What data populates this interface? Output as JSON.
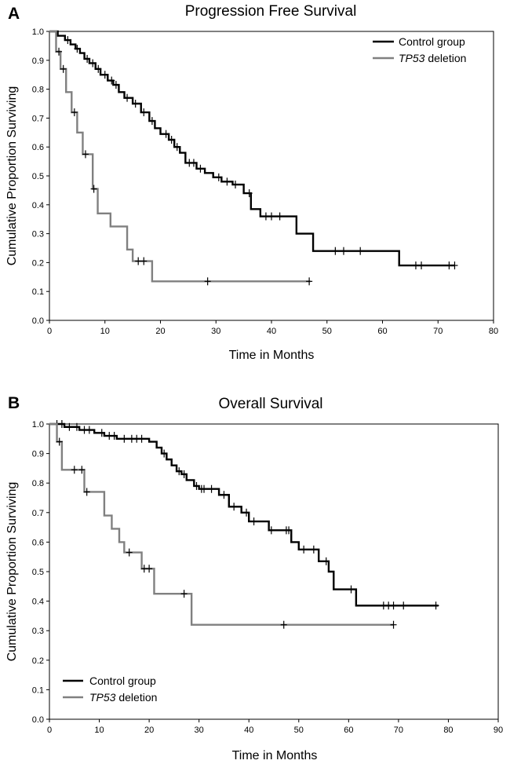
{
  "chart_data": [
    {
      "type": "line",
      "panel_letter": "A",
      "title": "Progression Free Survival",
      "xlabel": "Time in Months",
      "ylabel": "Cumulative Proportion Surviving",
      "xlim": [
        0,
        80
      ],
      "ylim": [
        0,
        1.0
      ],
      "xticks": [
        0,
        10,
        20,
        30,
        40,
        50,
        60,
        70,
        80
      ],
      "yticks": [
        "0.0",
        "0.1",
        "0.2",
        "0.3",
        "0.4",
        "0.5",
        "0.6",
        "0.7",
        "0.8",
        "0.9",
        "1.0"
      ],
      "legend_position": "top-right",
      "step": true,
      "series": [
        {
          "name": "Control group",
          "name_italic_part": "",
          "name_rest": "Control group",
          "color": "#000000",
          "x": [
            0,
            1.5,
            2.8,
            3.8,
            4.7,
            5.5,
            6.3,
            7.2,
            8.3,
            9.2,
            10.5,
            11.5,
            12.5,
            13.5,
            15.0,
            16.5,
            18.0,
            19.0,
            20.0,
            21.5,
            22.5,
            23.5,
            24.5,
            26.5,
            28.0,
            29.5,
            31.0,
            33.0,
            35.0,
            36.3,
            38.0,
            44.5,
            47.5,
            63.0,
            73.0
          ],
          "y": [
            1.0,
            0.985,
            0.97,
            0.955,
            0.94,
            0.925,
            0.905,
            0.89,
            0.87,
            0.85,
            0.83,
            0.815,
            0.79,
            0.77,
            0.75,
            0.72,
            0.69,
            0.665,
            0.645,
            0.625,
            0.6,
            0.58,
            0.545,
            0.525,
            0.51,
            0.495,
            0.48,
            0.47,
            0.44,
            0.385,
            0.36,
            0.3,
            0.24,
            0.19,
            0.19
          ],
          "censored_x": [
            3.3,
            5.0,
            6.8,
            7.8,
            8.8,
            10.0,
            11.2,
            12.0,
            14.0,
            15.5,
            17.0,
            18.5,
            21.0,
            22.0,
            23.0,
            25.2,
            26.0,
            27.2,
            30.5,
            32.0,
            33.5,
            36.0,
            39.0,
            40.0,
            41.5,
            51.5,
            53.0,
            56.0,
            66.0,
            67.0,
            72.0,
            73.0
          ]
        },
        {
          "name": "TP53 deletion",
          "name_italic_part": "TP53",
          "name_rest": " deletion",
          "color": "#808080",
          "x": [
            0,
            1.2,
            2.0,
            3.0,
            4.0,
            5.0,
            6.0,
            7.8,
            8.7,
            11.0,
            14.0,
            15.0,
            18.5,
            47.0
          ],
          "y": [
            1.0,
            0.93,
            0.87,
            0.79,
            0.72,
            0.65,
            0.575,
            0.455,
            0.37,
            0.325,
            0.245,
            0.205,
            0.135,
            0.135
          ],
          "censored_x": [
            1.7,
            2.5,
            4.5,
            6.5,
            8.0,
            16.0,
            17.0,
            28.5,
            46.8
          ]
        }
      ]
    },
    {
      "type": "line",
      "panel_letter": "B",
      "title": "Overall Survival",
      "xlabel": "Time in Months",
      "ylabel": "Cumulative Proportion Surviving",
      "xlim": [
        0,
        90
      ],
      "ylim": [
        0,
        1.0
      ],
      "xticks": [
        0,
        10,
        20,
        30,
        40,
        50,
        60,
        70,
        80,
        90
      ],
      "yticks": [
        "0.0",
        "0.1",
        "0.2",
        "0.3",
        "0.4",
        "0.5",
        "0.6",
        "0.7",
        "0.8",
        "0.9",
        "1.0"
      ],
      "legend_position": "bottom-left",
      "step": true,
      "series": [
        {
          "name": "Control group",
          "name_italic_part": "",
          "name_rest": "Control group",
          "color": "#000000",
          "x": [
            0,
            3.0,
            6.0,
            9.0,
            11.0,
            13.5,
            20.0,
            21.5,
            22.5,
            23.5,
            24.5,
            25.5,
            26.5,
            27.5,
            29.0,
            30.0,
            31.5,
            34.0,
            36.0,
            38.5,
            40.0,
            44.0,
            47.0,
            48.5,
            50.0,
            54.0,
            56.0,
            57.0,
            61.5,
            78.0
          ],
          "y": [
            1.0,
            0.99,
            0.98,
            0.97,
            0.96,
            0.95,
            0.94,
            0.92,
            0.9,
            0.88,
            0.86,
            0.84,
            0.83,
            0.81,
            0.79,
            0.78,
            0.78,
            0.76,
            0.72,
            0.7,
            0.67,
            0.64,
            0.64,
            0.6,
            0.575,
            0.535,
            0.5,
            0.44,
            0.385,
            0.385
          ],
          "censored_x": [
            1.5,
            2.5,
            4.0,
            5.5,
            7.0,
            8.0,
            10.5,
            12.0,
            13.0,
            15.0,
            16.5,
            17.5,
            18.5,
            23.0,
            26.0,
            27.0,
            29.5,
            30.5,
            31.0,
            32.5,
            35.0,
            37.0,
            39.5,
            41.0,
            44.5,
            47.5,
            48.0,
            51.0,
            53.0,
            55.5,
            60.5,
            67.0,
            68.0,
            69.0,
            71.0,
            77.5
          ]
        },
        {
          "name": "TP53 deletion",
          "name_italic_part": "TP53",
          "name_rest": " deletion",
          "color": "#808080",
          "x": [
            0,
            1.5,
            2.5,
            7.0,
            11.0,
            12.5,
            14.0,
            15.0,
            18.5,
            21.0,
            28.5,
            69.0
          ],
          "y": [
            1.0,
            0.94,
            0.845,
            0.77,
            0.69,
            0.645,
            0.6,
            0.565,
            0.51,
            0.425,
            0.32,
            0.32
          ],
          "censored_x": [
            2.0,
            5.0,
            6.5,
            7.5,
            16.0,
            19.0,
            20.0,
            27.0,
            47.0,
            69.0
          ]
        }
      ]
    }
  ]
}
